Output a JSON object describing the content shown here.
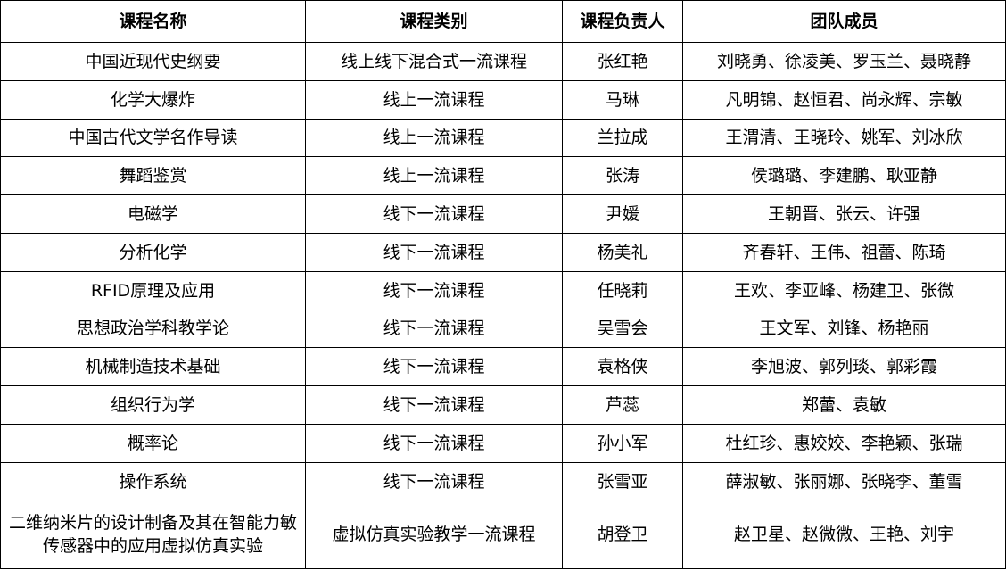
{
  "headers": [
    "课程名称",
    "课程类别",
    "课程负责人",
    "团队成员"
  ],
  "rows": [
    [
      "中国近现代史纲要",
      "线上线下混合式一流课程",
      "张红艳",
      "刘晓勇、徐凌美、罗玉兰、聂晓静"
    ],
    [
      "化学大爆炸",
      "线上一流课程",
      "马琳",
      "凡明锦、赵恒君、尚永辉、宗敏"
    ],
    [
      "中国古代文学名作导读",
      "线上一流课程",
      "兰拉成",
      "王渭清、王晓玲、姚军、刘冰欣"
    ],
    [
      "舞蹈鉴赏",
      "线上一流课程",
      "张涛",
      "侯璐璐、李建鹏、耿亚静"
    ],
    [
      "电磁学",
      "线下一流课程",
      "尹媛",
      "王朝晋、张云、许强"
    ],
    [
      "分析化学",
      "线下一流课程",
      "杨美礼",
      "齐春轩、王伟、祖蕾、陈琦"
    ],
    [
      "RFID原理及应用",
      "线下一流课程",
      "任晓莉",
      "王欢、李亚峰、杨建卫、张微"
    ],
    [
      "思想政治学科教学论",
      "线下一流课程",
      "吴雪会",
      "王文军、刘锋、杨艳丽"
    ],
    [
      "机械制造技术基础",
      "线下一流课程",
      "袁格侠",
      "李旭波、郭列琰、郭彩霞"
    ],
    [
      "组织行为学",
      "线下一流课程",
      "芦蕊",
      "郑蕾、袁敏"
    ],
    [
      "概率论",
      "线下一流课程",
      "孙小军",
      "杜红珍、惠姣姣、李艳颖、张瑞"
    ],
    [
      "操作系统",
      "线下一流课程",
      "张雪亚",
      "薛淑敏、张丽娜、张晓李、董雪"
    ],
    [
      "二维纳米片的设计制备及其在智能力敏传感器中的应用虚拟仿真实验",
      "虚拟仿真实验教学一流课程",
      "胡登卫",
      "赵卫星、赵微微、王艳、刘宇"
    ]
  ]
}
